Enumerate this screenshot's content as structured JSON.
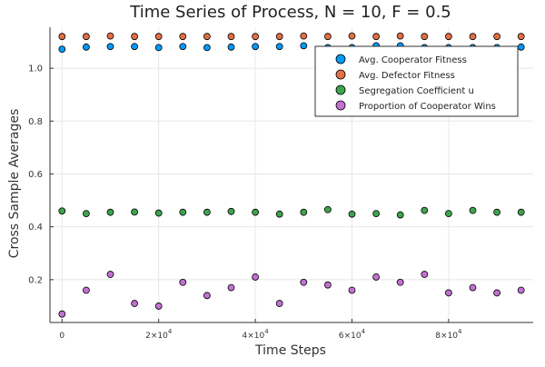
{
  "chart_data": {
    "type": "scatter",
    "title": "Time Series of Process, N = 10, F = 0.5",
    "xlabel": "Time Steps",
    "ylabel": "Cross Sample Averages",
    "xlim": [
      -2500,
      97500
    ],
    "ylim": [
      0.038,
      1.155
    ],
    "x_ticks": [
      {
        "value": 0,
        "label": "0",
        "exp": ""
      },
      {
        "value": 20000,
        "label": "2×10",
        "exp": "4"
      },
      {
        "value": 40000,
        "label": "4×10",
        "exp": "4"
      },
      {
        "value": 60000,
        "label": "6×10",
        "exp": "4"
      },
      {
        "value": 80000,
        "label": "8×10",
        "exp": "4"
      }
    ],
    "y_ticks": [
      {
        "value": 0.2,
        "label": "0.2"
      },
      {
        "value": 0.4,
        "label": "0.4"
      },
      {
        "value": 0.6,
        "label": "0.6"
      },
      {
        "value": 0.8,
        "label": "0.8"
      },
      {
        "value": 1.0,
        "label": "1.0"
      }
    ],
    "grid": true,
    "legend_position": "top-right",
    "x": [
      0,
      5000,
      10000,
      15000,
      20000,
      25000,
      30000,
      35000,
      40000,
      45000,
      50000,
      55000,
      60000,
      65000,
      70000,
      75000,
      80000,
      85000,
      90000,
      95000
    ],
    "series": [
      {
        "name": "Avg. Cooperator Fitness",
        "color": "#009af9",
        "values": [
          1.072,
          1.08,
          1.082,
          1.082,
          1.078,
          1.082,
          1.078,
          1.08,
          1.082,
          1.082,
          1.085,
          1.078,
          1.078,
          1.085,
          1.085,
          1.078,
          1.078,
          1.078,
          1.078,
          1.08
        ]
      },
      {
        "name": "Avg. Defector Fitness",
        "color": "#e26f46",
        "values": [
          1.12,
          1.12,
          1.122,
          1.12,
          1.12,
          1.12,
          1.12,
          1.12,
          1.12,
          1.12,
          1.122,
          1.12,
          1.122,
          1.12,
          1.122,
          1.12,
          1.12,
          1.12,
          1.12,
          1.12
        ]
      },
      {
        "name": "Segregation Coefficient u",
        "color": "#3da44d",
        "values": [
          0.46,
          0.45,
          0.455,
          0.456,
          0.452,
          0.455,
          0.455,
          0.458,
          0.455,
          0.448,
          0.455,
          0.465,
          0.448,
          0.45,
          0.445,
          0.462,
          0.45,
          0.462,
          0.455,
          0.455
        ]
      },
      {
        "name": "Proportion of Cooperator Wins",
        "color": "#c271d2",
        "values": [
          0.07,
          0.16,
          0.22,
          0.11,
          0.1,
          0.19,
          0.14,
          0.17,
          0.21,
          0.11,
          0.19,
          0.18,
          0.16,
          0.21,
          0.19,
          0.22,
          0.15,
          0.17,
          0.15,
          0.16
        ]
      }
    ]
  }
}
